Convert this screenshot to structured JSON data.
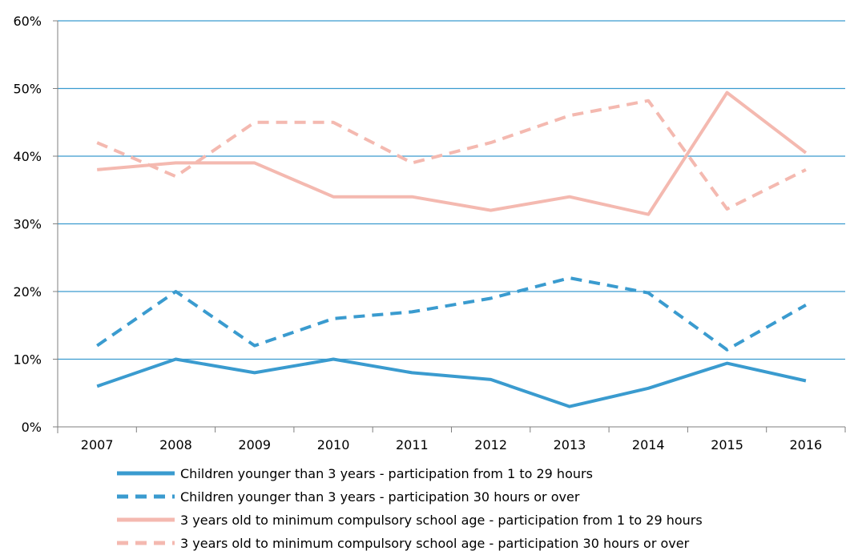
{
  "chart_data": {
    "type": "line",
    "title": "",
    "xlabel": "",
    "ylabel": "",
    "categories": [
      "2007",
      "2008",
      "2009",
      "2010",
      "2011",
      "2012",
      "2013",
      "2014",
      "2015",
      "2016"
    ],
    "ylim": [
      0,
      60
    ],
    "yticks": [
      0,
      10,
      20,
      30,
      40,
      50,
      60
    ],
    "ytick_labels": [
      "0%",
      "10%",
      "20%",
      "30%",
      "40%",
      "50%",
      "60%"
    ],
    "grid": true,
    "legend_position": "bottom",
    "series": [
      {
        "name": "Children younger than 3 years - participation from 1 to 29 hours",
        "color": "#3a9bcf",
        "style": "solid",
        "values": [
          6,
          10,
          8,
          10,
          8,
          7,
          3,
          5.7,
          9.4,
          6.8
        ]
      },
      {
        "name": "Children younger than 3 years - participation 30 hours or over",
        "color": "#3a9bcf",
        "style": "dashed",
        "values": [
          12,
          20,
          12,
          16,
          17,
          19,
          22,
          19.8,
          11.4,
          18
        ]
      },
      {
        "name": "3 years old to minimum compulsory school age - participation from 1 to 29 hours",
        "color": "#f4b9b0",
        "style": "solid",
        "values": [
          38,
          39,
          39,
          34,
          34,
          32,
          34,
          31.4,
          49.4,
          40.5
        ]
      },
      {
        "name": "3 years old to minimum compulsory school age - participation 30 hours or over",
        "color": "#f4b9b0",
        "style": "dashed",
        "values": [
          42,
          37,
          45,
          45,
          39,
          42,
          46,
          48.2,
          32.2,
          38
        ]
      }
    ],
    "colors": {
      "gridline": "#3a9bcf",
      "axis": "#7f7f7f"
    }
  }
}
